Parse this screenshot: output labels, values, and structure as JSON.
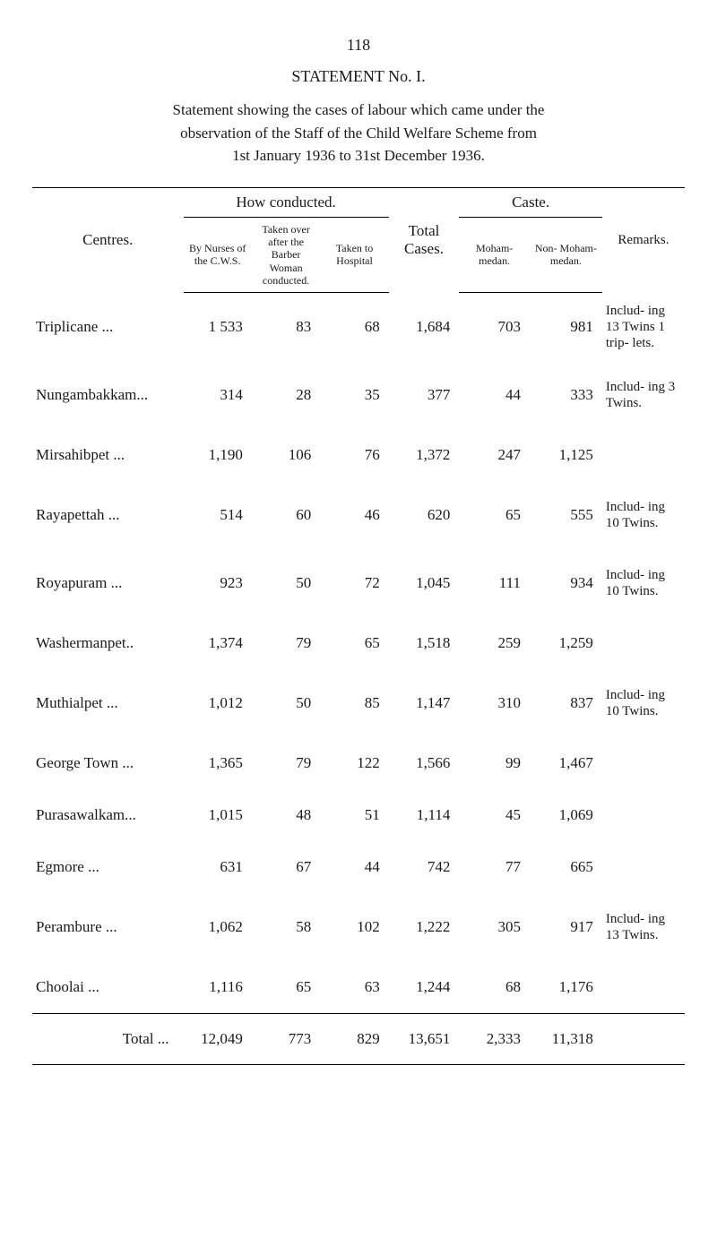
{
  "page_number": "118",
  "title": "STATEMENT No. I.",
  "intro_line1": "Statement showing the cases of labour which came under the",
  "intro_line2": "observation of the Staff of the Child Welfare Scheme from",
  "intro_line3": "1st January 1936 to 31st December 1936.",
  "headers": {
    "centres": "Centres.",
    "how_conducted": "How conducted.",
    "by_nurses": "By Nurses of the C.W.S.",
    "taken_over": "Taken over after the Barber Woman conducted.",
    "taken_to": "Taken to Hospital",
    "total_cases": "Total Cases.",
    "caste": "Caste.",
    "moham": "Moham- medan.",
    "non_moham": "Non- Moham- medan.",
    "remarks": "Remarks."
  },
  "columns": [
    "centre",
    "by_nurses",
    "taken_over",
    "taken_to",
    "total",
    "moham",
    "non_moham",
    "remarks"
  ],
  "rows": [
    {
      "centre": "Triplicane",
      "by_nurses": "1 533",
      "taken_over": "83",
      "taken_to": "68",
      "total": "1,684",
      "moham": "703",
      "non_moham": "981",
      "remarks": "Includ- ing 13 Twins 1 trip- lets."
    },
    {
      "centre": "Nungambakkam...",
      "by_nurses": "314",
      "taken_over": "28",
      "taken_to": "35",
      "total": "377",
      "moham": "44",
      "non_moham": "333",
      "remarks": "Includ- ing 3 Twins."
    },
    {
      "centre": "Mirsahibpet",
      "by_nurses": "1,190",
      "taken_over": "106",
      "taken_to": "76",
      "total": "1,372",
      "moham": "247",
      "non_moham": "1,125",
      "remarks": ""
    },
    {
      "centre": "Rayapettah",
      "by_nurses": "514",
      "taken_over": "60",
      "taken_to": "46",
      "total": "620",
      "moham": "65",
      "non_moham": "555",
      "remarks": "Includ- ing 10 Twins."
    },
    {
      "centre": "Royapuram",
      "by_nurses": "923",
      "taken_over": "50",
      "taken_to": "72",
      "total": "1,045",
      "moham": "111",
      "non_moham": "934",
      "remarks": "Includ- ing 10 Twins."
    },
    {
      "centre": "Washermanpet..",
      "by_nurses": "1,374",
      "taken_over": "79",
      "taken_to": "65",
      "total": "1,518",
      "moham": "259",
      "non_moham": "1,259",
      "remarks": ""
    },
    {
      "centre": "Muthialpet",
      "by_nurses": "1,012",
      "taken_over": "50",
      "taken_to": "85",
      "total": "1,147",
      "moham": "310",
      "non_moham": "837",
      "remarks": "Includ- ing 10 Twins."
    },
    {
      "centre": "George Town ...",
      "by_nurses": "1,365",
      "taken_over": "79",
      "taken_to": "122",
      "total": "1,566",
      "moham": "99",
      "non_moham": "1,467",
      "remarks": ""
    },
    {
      "centre": "Purasawalkam...",
      "by_nurses": "1,015",
      "taken_over": "48",
      "taken_to": "51",
      "total": "1,114",
      "moham": "45",
      "non_moham": "1,069",
      "remarks": ""
    },
    {
      "centre": "Egmore",
      "by_nurses": "631",
      "taken_over": "67",
      "taken_to": "44",
      "total": "742",
      "moham": "77",
      "non_moham": "665",
      "remarks": ""
    },
    {
      "centre": "Perambure",
      "by_nurses": "1,062",
      "taken_over": "58",
      "taken_to": "102",
      "total": "1,222",
      "moham": "305",
      "non_moham": "917",
      "remarks": "Includ- ing 13 Twins."
    },
    {
      "centre": "Choolai",
      "by_nurses": "1,116",
      "taken_over": "65",
      "taken_to": "63",
      "total": "1,244",
      "moham": "68",
      "non_moham": "1,176",
      "remarks": ""
    }
  ],
  "total": {
    "label": "Total ...",
    "by_nurses": "12,049",
    "taken_over": "773",
    "taken_to": "829",
    "total": "13,651",
    "moham": "2,333",
    "non_moham": "11,318"
  },
  "col_widths": {
    "centres": 150,
    "c1": 68,
    "c2": 68,
    "c3": 68,
    "c4": 70,
    "c5": 70,
    "c6": 72,
    "remarks": 82
  },
  "colors": {
    "text": "#1a1a1a",
    "bg": "#ffffff",
    "rule": "#000000"
  },
  "font": {
    "family": "Times New Roman",
    "body_size": 17,
    "small_size": 12
  }
}
